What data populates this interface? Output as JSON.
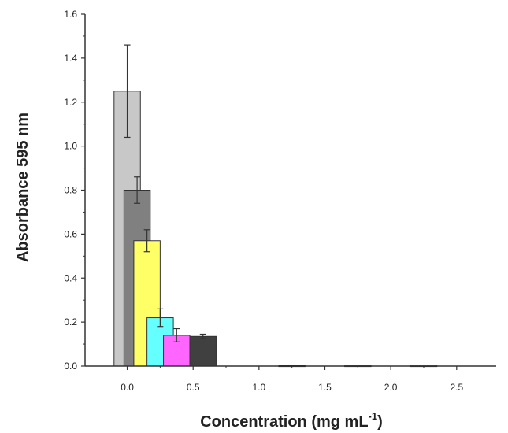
{
  "chart_data": {
    "type": "bar",
    "title": "",
    "xlabel": "Concentration (mg mL",
    "xlabel_sup": "-1",
    "xlabel_close": ")",
    "ylabel": "Absorbance 595 nm",
    "xlim": [
      -0.32,
      2.8
    ],
    "ylim": [
      0.0,
      1.6
    ],
    "x_ticks": [
      0.0,
      0.5,
      1.0,
      1.5,
      2.0,
      2.5
    ],
    "x_tick_labels": [
      "0.0",
      "0.5",
      "1.0",
      "1.5",
      "2.0",
      "2.5"
    ],
    "y_ticks": [
      0.0,
      0.2,
      0.4,
      0.6,
      0.8,
      1.0,
      1.2,
      1.4,
      1.6
    ],
    "y_tick_labels": [
      "0.0",
      "0.2",
      "0.4",
      "0.6",
      "0.8",
      "1.0",
      "1.2",
      "1.4",
      "1.6"
    ],
    "grid": false,
    "bars": [
      {
        "x": 0.0,
        "value": 1.25,
        "error": 0.21,
        "color": "#c8c8c8"
      },
      {
        "x": 0.075,
        "value": 0.8,
        "error": 0.06,
        "color": "#808080"
      },
      {
        "x": 0.15,
        "value": 0.57,
        "error": 0.05,
        "color": "#ffff66"
      },
      {
        "x": 0.25,
        "value": 0.22,
        "error": 0.04,
        "color": "#66ffff"
      },
      {
        "x": 0.375,
        "value": 0.14,
        "error": 0.03,
        "color": "#ff66ff"
      },
      {
        "x": 0.575,
        "value": 0.135,
        "error": 0.01,
        "color": "#404040"
      },
      {
        "x": 1.25,
        "value": 0.005,
        "error": 0.0,
        "color": "#111111"
      },
      {
        "x": 1.75,
        "value": 0.005,
        "error": 0.0,
        "color": "#b22222"
      },
      {
        "x": 2.25,
        "value": 0.005,
        "error": 0.0,
        "color": "#22a022"
      }
    ],
    "bar_width": 0.2
  }
}
